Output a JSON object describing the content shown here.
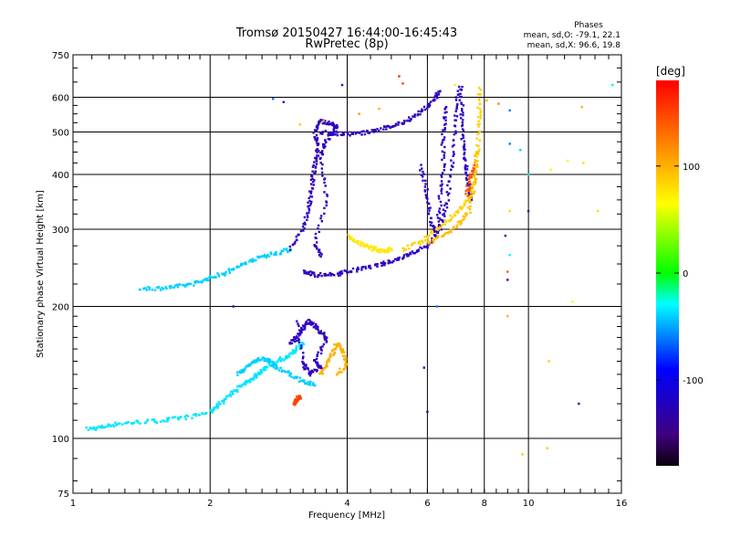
{
  "chart_data": {
    "type": "scatter",
    "title": "Tromsø 20150427 16:44:00-16:45:43",
    "subtitle": "RwPretec (8p)",
    "xlabel": "Frequency [MHz]",
    "ylabel": "Stationary phase Virtual Height [km]",
    "x_scale": "log",
    "y_scale": "log",
    "xlim": [
      1,
      16
    ],
    "ylim": [
      75,
      750
    ],
    "x_ticks": [
      1,
      2,
      4,
      6,
      8,
      10,
      16
    ],
    "x_tick_labels": [
      "1",
      "2",
      "4",
      "6",
      "8",
      "10",
      "16"
    ],
    "y_ticks": [
      75,
      100,
      200,
      300,
      400,
      500,
      600,
      750
    ],
    "y_tick_labels": [
      "75",
      "100",
      "200",
      "300",
      "400",
      "500",
      "600",
      "750"
    ],
    "grid": true,
    "stats": {
      "heading": "Phases",
      "line1": "mean, sd,O: -79.1, 22.1",
      "line2": "mean, sd,X:  96.6, 19.8"
    },
    "colorbar": {
      "label": "[deg]",
      "range": [
        -180,
        180
      ],
      "ticks": [
        100,
        0,
        -100
      ],
      "tick_labels": [
        "100",
        "0",
        "-100"
      ]
    },
    "traces": [
      {
        "phase": -35,
        "points": [
          [
            1.08,
            105
          ],
          [
            1.15,
            106
          ],
          [
            1.25,
            108
          ],
          [
            1.4,
            109
          ],
          [
            1.6,
            110
          ],
          [
            1.8,
            112
          ],
          [
            2.0,
            115
          ],
          [
            2.1,
            120
          ],
          [
            2.2,
            125
          ],
          [
            2.3,
            130
          ],
          [
            2.4,
            134
          ],
          [
            2.5,
            138
          ],
          [
            2.6,
            143
          ],
          [
            2.8,
            150
          ],
          [
            3.0,
            155
          ],
          [
            3.1,
            160
          ],
          [
            3.2,
            165
          ]
        ]
      },
      {
        "phase": -40,
        "points": [
          [
            2.3,
            140
          ],
          [
            2.4,
            145
          ],
          [
            2.5,
            150
          ],
          [
            2.6,
            152
          ],
          [
            2.7,
            150
          ],
          [
            2.8,
            145
          ],
          [
            3.0,
            140
          ],
          [
            3.2,
            135
          ],
          [
            3.4,
            132
          ]
        ]
      },
      {
        "phase": -40,
        "points": [
          [
            1.4,
            220
          ],
          [
            1.55,
            220
          ],
          [
            1.7,
            222
          ],
          [
            1.85,
            226
          ],
          [
            2.0,
            232
          ],
          [
            2.15,
            238
          ],
          [
            2.3,
            246
          ],
          [
            2.45,
            254
          ],
          [
            2.6,
            260
          ],
          [
            2.8,
            265
          ],
          [
            3.0,
            270
          ]
        ]
      },
      {
        "phase": -120,
        "points": [
          [
            3.0,
            165
          ],
          [
            3.1,
            170
          ],
          [
            3.2,
            178
          ],
          [
            3.3,
            185
          ],
          [
            3.4,
            180
          ],
          [
            3.5,
            175
          ],
          [
            3.6,
            168
          ],
          [
            3.4,
            150
          ],
          [
            3.5,
            145
          ],
          [
            3.3,
            140
          ],
          [
            3.2,
            150
          ],
          [
            3.1,
            185
          ]
        ]
      },
      {
        "phase": -120,
        "points": [
          [
            3.2,
            240
          ],
          [
            3.4,
            236
          ],
          [
            3.7,
            236
          ],
          [
            4.0,
            240
          ],
          [
            4.4,
            245
          ],
          [
            4.8,
            250
          ],
          [
            5.2,
            257
          ],
          [
            5.6,
            265
          ],
          [
            6.0,
            275
          ],
          [
            6.4,
            300
          ],
          [
            6.6,
            340
          ],
          [
            6.8,
            420
          ],
          [
            6.9,
            520
          ],
          [
            7.0,
            620
          ]
        ]
      },
      {
        "phase": -120,
        "points": [
          [
            3.0,
            270
          ],
          [
            3.2,
            300
          ],
          [
            3.3,
            340
          ],
          [
            3.35,
            380
          ],
          [
            3.4,
            420
          ],
          [
            3.45,
            460
          ],
          [
            3.4,
            500
          ],
          [
            3.5,
            530
          ],
          [
            3.7,
            520
          ],
          [
            3.8,
            510
          ],
          [
            3.6,
            480
          ],
          [
            3.5,
            440
          ],
          [
            3.6,
            350
          ],
          [
            3.4,
            280
          ],
          [
            3.5,
            260
          ]
        ]
      },
      {
        "phase": -120,
        "points": [
          [
            3.5,
            500
          ],
          [
            3.8,
            495
          ],
          [
            4.2,
            495
          ],
          [
            4.6,
            503
          ],
          [
            5.0,
            515
          ],
          [
            5.4,
            530
          ],
          [
            5.8,
            555
          ],
          [
            6.2,
            590
          ],
          [
            6.4,
            620
          ]
        ]
      },
      {
        "phase": -120,
        "points": [
          [
            5.8,
            420
          ],
          [
            6.0,
            360
          ],
          [
            6.1,
            310
          ],
          [
            6.3,
            290
          ],
          [
            6.4,
            350
          ],
          [
            6.5,
            420
          ],
          [
            6.5,
            500
          ],
          [
            6.6,
            570
          ]
        ]
      },
      {
        "phase": -120,
        "points": [
          [
            7.1,
            640
          ],
          [
            7.15,
            550
          ],
          [
            7.2,
            470
          ],
          [
            7.3,
            420
          ],
          [
            7.4,
            380
          ],
          [
            7.5,
            350
          ]
        ]
      },
      {
        "phase": 75,
        "points": [
          [
            4.0,
            290
          ],
          [
            4.2,
            280
          ],
          [
            4.4,
            275
          ],
          [
            4.6,
            270
          ],
          [
            4.8,
            268
          ],
          [
            5.0,
            270
          ]
        ]
      },
      {
        "phase": 100,
        "points": [
          [
            3.5,
            140
          ],
          [
            3.6,
            148
          ],
          [
            3.7,
            155
          ],
          [
            3.8,
            165
          ],
          [
            3.9,
            160
          ],
          [
            4.0,
            148
          ],
          [
            3.8,
            140
          ]
        ]
      },
      {
        "phase": 85,
        "points": [
          [
            5.3,
            270
          ],
          [
            5.8,
            280
          ],
          [
            6.3,
            300
          ],
          [
            6.8,
            320
          ],
          [
            7.2,
            340
          ],
          [
            7.5,
            360
          ],
          [
            7.65,
            400
          ],
          [
            7.75,
            460
          ],
          [
            7.8,
            540
          ],
          [
            7.8,
            630
          ]
        ]
      },
      {
        "phase": 95,
        "points": [
          [
            6.0,
            280
          ],
          [
            6.5,
            290
          ],
          [
            7.0,
            305
          ],
          [
            7.4,
            330
          ],
          [
            7.6,
            380
          ],
          [
            7.7,
            450
          ]
        ]
      },
      {
        "phase": 140,
        "points": [
          [
            7.3,
            360
          ],
          [
            7.45,
            390
          ],
          [
            7.6,
            420
          ]
        ]
      },
      {
        "phase": 150,
        "points": [
          [
            3.05,
            120
          ],
          [
            3.1,
            122
          ],
          [
            3.15,
            125
          ]
        ]
      }
    ],
    "scatter_points": [
      {
        "x": 5.2,
        "y": 670,
        "phase": 160
      },
      {
        "x": 5.3,
        "y": 645,
        "phase": 150
      },
      {
        "x": 6.9,
        "y": 640,
        "phase": 60
      },
      {
        "x": 8.1,
        "y": 590,
        "phase": 100
      },
      {
        "x": 8.6,
        "y": 580,
        "phase": 120
      },
      {
        "x": 9.1,
        "y": 560,
        "phase": -60
      },
      {
        "x": 9.1,
        "y": 470,
        "phase": -60
      },
      {
        "x": 9.6,
        "y": 455,
        "phase": -40
      },
      {
        "x": 10.0,
        "y": 400,
        "phase": -30
      },
      {
        "x": 11.2,
        "y": 410,
        "phase": 60
      },
      {
        "x": 12.2,
        "y": 430,
        "phase": 70
      },
      {
        "x": 13.2,
        "y": 425,
        "phase": 80
      },
      {
        "x": 13.1,
        "y": 570,
        "phase": 100
      },
      {
        "x": 15.3,
        "y": 640,
        "phase": -20
      },
      {
        "x": 14.2,
        "y": 330,
        "phase": 80
      },
      {
        "x": 10.0,
        "y": 330,
        "phase": -120
      },
      {
        "x": 9.1,
        "y": 330,
        "phase": 80
      },
      {
        "x": 8.9,
        "y": 290,
        "phase": -110
      },
      {
        "x": 9.0,
        "y": 240,
        "phase": 140
      },
      {
        "x": 9.0,
        "y": 230,
        "phase": -130
      },
      {
        "x": 9.1,
        "y": 262,
        "phase": -30
      },
      {
        "x": 9.0,
        "y": 190,
        "phase": 100
      },
      {
        "x": 9.7,
        "y": 92,
        "phase": 90
      },
      {
        "x": 11.0,
        "y": 95,
        "phase": 90
      },
      {
        "x": 11.1,
        "y": 150,
        "phase": 90
      },
      {
        "x": 12.9,
        "y": 120,
        "phase": -150
      },
      {
        "x": 12.5,
        "y": 205,
        "phase": 60
      },
      {
        "x": 6.3,
        "y": 200,
        "phase": -60
      },
      {
        "x": 5.9,
        "y": 145,
        "phase": -130
      },
      {
        "x": 6.0,
        "y": 115,
        "phase": -130
      },
      {
        "x": 2.75,
        "y": 595,
        "phase": -60
      },
      {
        "x": 2.9,
        "y": 585,
        "phase": -120
      },
      {
        "x": 2.25,
        "y": 200,
        "phase": -120
      },
      {
        "x": 4.7,
        "y": 565,
        "phase": 100
      },
      {
        "x": 4.25,
        "y": 550,
        "phase": 110
      },
      {
        "x": 3.55,
        "y": 530,
        "phase": 100
      },
      {
        "x": 3.15,
        "y": 520,
        "phase": 90
      },
      {
        "x": 3.9,
        "y": 640,
        "phase": -120
      }
    ]
  }
}
